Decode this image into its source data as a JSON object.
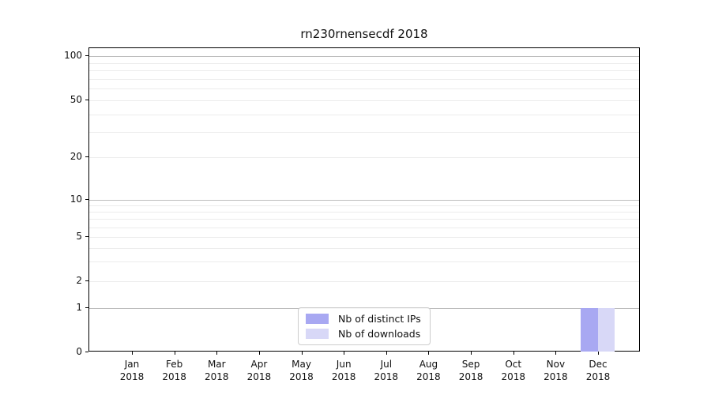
{
  "chart_data": {
    "type": "bar",
    "title": "rn230rnensecdf 2018",
    "categories": [
      "Jan 2018",
      "Feb 2018",
      "Mar 2018",
      "Apr 2018",
      "May 2018",
      "Jun 2018",
      "Jul 2018",
      "Aug 2018",
      "Sep 2018",
      "Oct 2018",
      "Nov 2018",
      "Dec 2018"
    ],
    "series": [
      {
        "name": "Nb of distinct IPs",
        "color": "#a8a8f2",
        "values": [
          0,
          0,
          0,
          0,
          0,
          0,
          0,
          0,
          0,
          0,
          0,
          1
        ]
      },
      {
        "name": "Nb of downloads",
        "color": "#d8d8f7",
        "values": [
          0,
          0,
          0,
          0,
          0,
          0,
          0,
          0,
          0,
          0,
          0,
          1
        ]
      }
    ],
    "xlabel": "",
    "ylabel": "",
    "yscale": "symlog",
    "ylim": [
      0,
      110
    ],
    "yticks": [
      0,
      1,
      2,
      5,
      10,
      20,
      50,
      100
    ],
    "minor_grid_values": [
      2,
      3,
      4,
      5,
      6,
      7,
      8,
      9,
      20,
      30,
      40,
      50,
      60,
      70,
      80,
      90
    ],
    "major_grid_values": [
      1,
      10,
      100
    ],
    "grid": true,
    "legend_position": "lower center",
    "colors": {
      "minor_grid": "#ececec",
      "major_grid": "#bdbdbd",
      "axis": "#000000",
      "legend_border": "#cccccc"
    }
  }
}
